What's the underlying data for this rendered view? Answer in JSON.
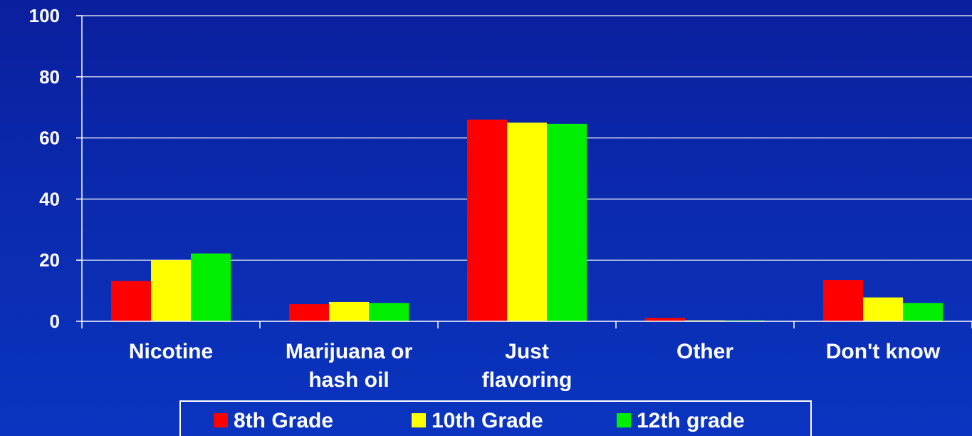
{
  "chart_data": {
    "type": "bar",
    "categories": [
      [
        "Nicotine"
      ],
      [
        "Marijuana or",
        "hash oil"
      ],
      [
        "Just",
        "flavoring"
      ],
      [
        "Other"
      ],
      [
        "Don't know"
      ]
    ],
    "series": [
      {
        "name": "8th Grade",
        "color": "#ff0000",
        "values": [
          13.2,
          5.6,
          66.0,
          1.1,
          13.5
        ]
      },
      {
        "name": "10th Grade",
        "color": "#ffff00",
        "values": [
          20.0,
          6.3,
          65.0,
          0.3,
          7.8
        ]
      },
      {
        "name": "12th grade",
        "color": "#00ee00",
        "values": [
          22.2,
          6.0,
          64.6,
          0.3,
          6.0
        ]
      }
    ],
    "yticks": [
      "0",
      "20",
      "40",
      "60",
      "80",
      "100"
    ],
    "ylim": [
      0,
      100
    ],
    "grid": true,
    "legend": "bottom"
  },
  "colors": {
    "background": "#0b2ab0",
    "grid": "#ffffff",
    "text": "#ffffff"
  }
}
